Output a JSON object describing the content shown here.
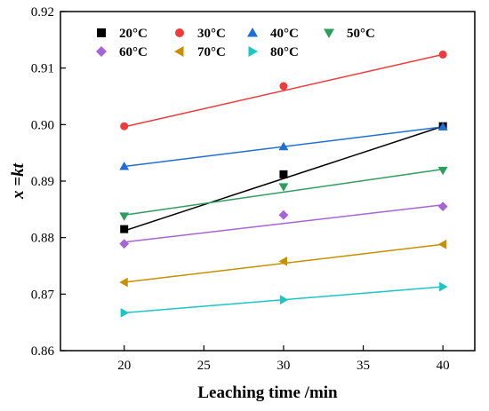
{
  "chart_data": {
    "type": "scatter",
    "title": "",
    "xlabel": "Leaching time /min",
    "ylabel": "x =kt",
    "xlim": [
      16,
      42
    ],
    "ylim": [
      0.86,
      0.92
    ],
    "xticks": [
      20,
      25,
      30,
      35,
      40
    ],
    "yticks": [
      0.86,
      0.87,
      0.88,
      0.89,
      0.9,
      0.91,
      0.92
    ],
    "xtick_labels": [
      "20",
      "25",
      "30",
      "35",
      "40"
    ],
    "ytick_labels": [
      "0.86",
      "0.87",
      "0.88",
      "0.89",
      "0.90",
      "0.91",
      "0.92"
    ],
    "grid": false,
    "legend_position": "top",
    "x": [
      20,
      30,
      40
    ],
    "series": [
      {
        "name": "20°C",
        "marker": "square",
        "color": "#000000",
        "points": [
          0.8815,
          0.8912,
          0.8997
        ],
        "fit": [
          0.8812,
          0.8997
        ]
      },
      {
        "name": "30°C",
        "marker": "circle",
        "color": "#ee3b3b",
        "points": [
          0.8997,
          0.9068,
          0.9124
        ],
        "fit": [
          0.8996,
          0.9124
        ]
      },
      {
        "name": "40°C",
        "marker": "triangle-up",
        "color": "#1f6fd6",
        "points": [
          0.8926,
          0.8961,
          0.8996
        ],
        "fit": [
          0.8926,
          0.8996
        ]
      },
      {
        "name": "50°C",
        "marker": "triangle-down",
        "color": "#2e9e5e",
        "points": [
          0.8838,
          0.889,
          0.8919
        ],
        "fit": [
          0.884,
          0.8921
        ]
      },
      {
        "name": "60°C",
        "marker": "diamond",
        "color": "#a864d6",
        "points": [
          0.8789,
          0.884,
          0.8855
        ],
        "fit": [
          0.8792,
          0.8858
        ]
      },
      {
        "name": "70°C",
        "marker": "triangle-left",
        "color": "#c89000",
        "points": [
          0.8721,
          0.8758,
          0.8788
        ],
        "fit": [
          0.8721,
          0.8788
        ]
      },
      {
        "name": "80°C",
        "marker": "triangle-right",
        "color": "#1ec5c5",
        "points": [
          0.8667,
          0.869,
          0.8713
        ],
        "fit": [
          0.8667,
          0.8713
        ]
      }
    ]
  }
}
